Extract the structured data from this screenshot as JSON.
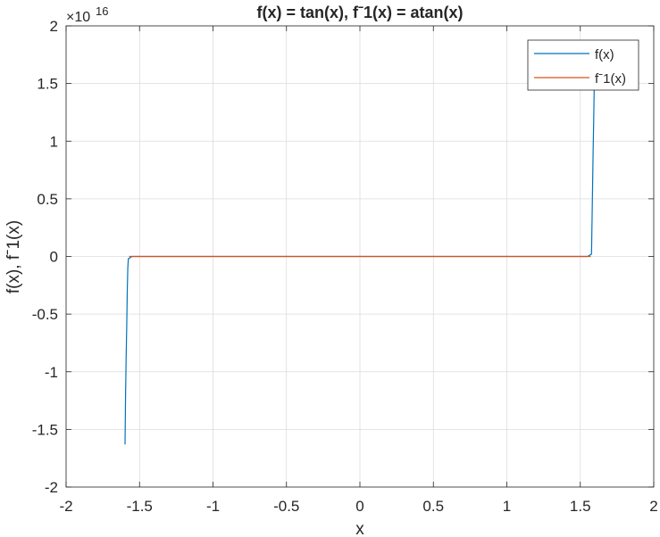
{
  "chart_data": {
    "type": "line",
    "title": "f(x) = tan(x), fˉ1(x) = atan(x)",
    "xlabel": "x",
    "ylabel": "f(x), fˉ1(x)",
    "xlim": [
      -2,
      2
    ],
    "ylim": [
      -2e+16,
      2e+16
    ],
    "y_exponent_label": "×10",
    "y_exponent_value": "16",
    "xticks": [
      "-2",
      "-1.5",
      "-1",
      "-0.5",
      "0",
      "0.5",
      "1",
      "1.5",
      "2"
    ],
    "xtick_values": [
      -2,
      -1.5,
      -1,
      -0.5,
      0,
      0.5,
      1,
      1.5,
      2
    ],
    "yticks": [
      "-2",
      "-1.5",
      "-1",
      "-0.5",
      "0",
      "0.5",
      "1",
      "1.5",
      "2"
    ],
    "ytick_values": [
      -2e+16,
      -1.5e+16,
      -1e+16,
      -5000000000000000.0,
      0,
      5000000000000000.0,
      1e+16,
      1.5e+16,
      2e+16
    ],
    "grid": true,
    "legend_position": "top-right",
    "series": [
      {
        "name": "f(x)",
        "color": "#0072BD",
        "points": [
          [
            -1.5708,
            -1.63e+16
          ],
          [
            -1.5707,
            -1.2e+16
          ],
          [
            -1.5706,
            -9000000000000000.0
          ],
          [
            -1.5705,
            -6000000000000000.0
          ],
          [
            -1.5704,
            -3000000000000000.0
          ],
          [
            -1.5703,
            -1000000000000000.0
          ],
          [
            -1.5702,
            -200000000000000.0
          ],
          [
            -1.55,
            0
          ],
          [
            0,
            0
          ],
          [
            1.55,
            0
          ],
          [
            1.5702,
            200000000000000.0
          ],
          [
            1.5703,
            3000000000000000.0
          ],
          [
            1.5704,
            6000000000000000.0
          ],
          [
            1.5705,
            9000000000000000.0
          ],
          [
            1.5706,
            1.2e+16
          ],
          [
            1.5707,
            1.5e+16
          ],
          [
            1.5708,
            1.6e+16
          ]
        ]
      },
      {
        "name": "fˉ1(x)",
        "color": "#D95319",
        "points": [
          [
            -1.5708,
            -1.0039
          ],
          [
            0,
            0
          ],
          [
            1.5708,
            1.0039
          ]
        ]
      }
    ]
  }
}
